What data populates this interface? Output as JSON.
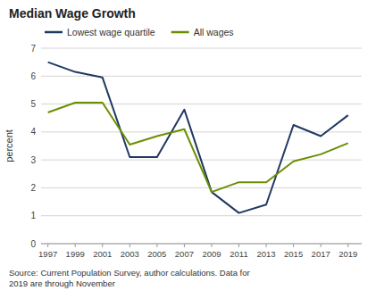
{
  "chart_data": {
    "type": "line",
    "title": "Median Wage Growth",
    "y_label": "percent",
    "annotations": [
      "Source: Current Population Survey, author calculations. Data for\n2019 are through November"
    ],
    "x": [
      1997,
      1999,
      2001,
      2003,
      2005,
      2007,
      2009,
      2011,
      2013,
      2015,
      2017,
      2019
    ],
    "series": [
      {
        "name": "Lowest wage quartile",
        "color": "#1f3864",
        "values": [
          6.5,
          6.15,
          5.95,
          3.1,
          3.1,
          4.8,
          1.85,
          1.1,
          1.4,
          4.25,
          3.85,
          4.6
        ]
      },
      {
        "name": "All wages",
        "color": "#6b8e00",
        "values": [
          4.7,
          5.05,
          5.05,
          3.55,
          3.85,
          4.1,
          1.85,
          2.2,
          2.2,
          2.95,
          3.2,
          3.6
        ]
      }
    ],
    "xlim": [
      1996.5,
      2020.0
    ],
    "xticks": [
      1997,
      1999,
      2001,
      2003,
      2005,
      2007,
      2009,
      2011,
      2013,
      2015,
      2017,
      2019
    ],
    "ylim": [
      0,
      7
    ],
    "yticks": [
      0,
      1,
      2,
      3,
      4,
      5,
      6,
      7
    ],
    "grid": true,
    "legend": "top"
  }
}
